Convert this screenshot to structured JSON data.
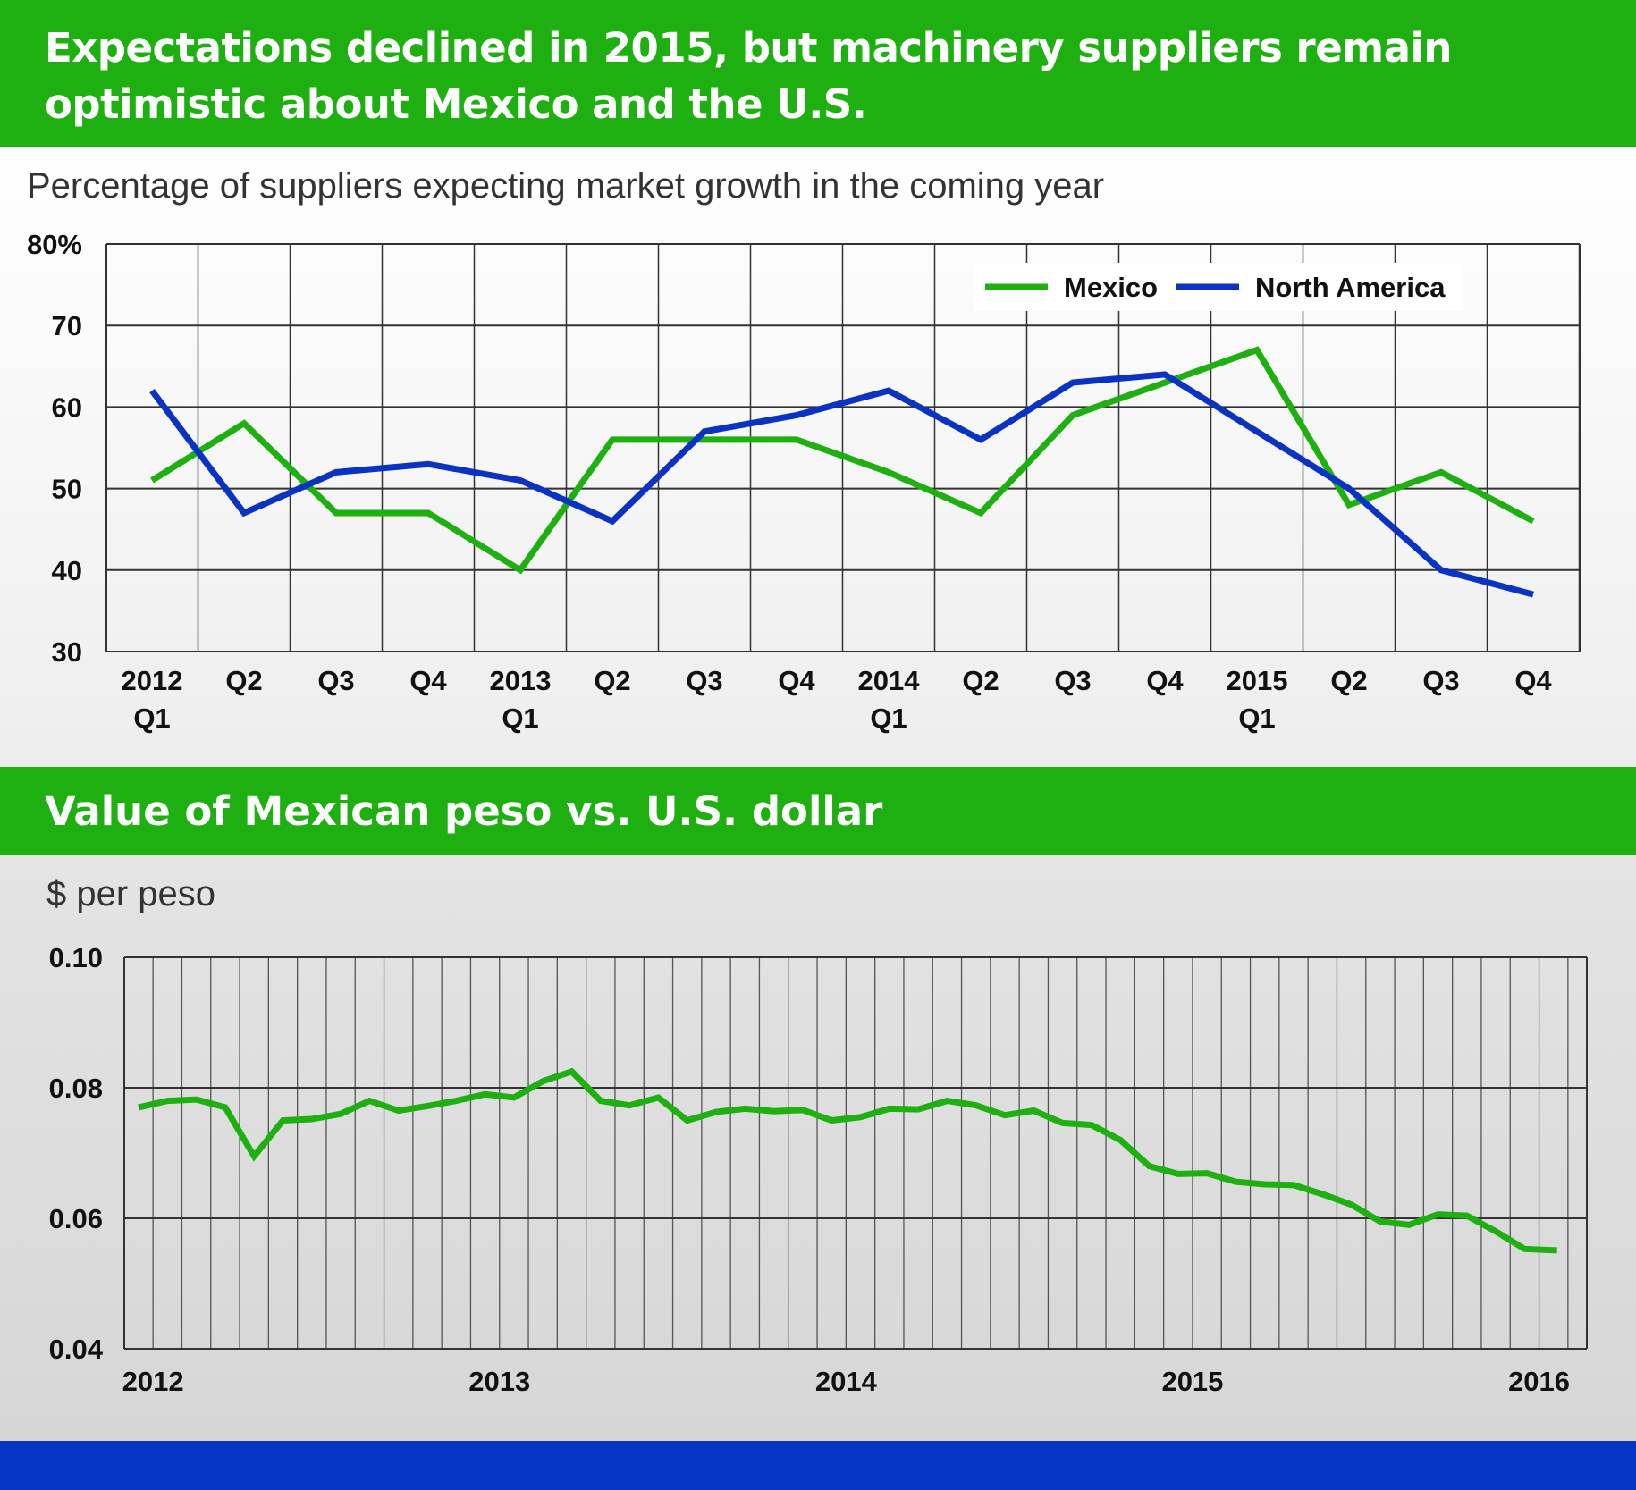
{
  "header": {
    "title": "Expectations declined in 2015, but machinery suppliers remain optimistic about Mexico and the U.S.",
    "title_line1": "Expectations declined in 2015, but machinery suppliers remain",
    "title_line2": "optimistic about Mexico and the U.S."
  },
  "section2": {
    "title": "Value of Mexican peso vs. U.S. dollar"
  },
  "colors": {
    "banner": "#1db010",
    "mexico": "#1db010",
    "north_america": "#0a33c4",
    "footer": "#0534c4"
  },
  "chart_data": [
    {
      "type": "line",
      "title": "Percentage of suppliers expecting market growth in the coming year",
      "ylim": [
        30,
        80
      ],
      "yticks": [
        "80%",
        "70",
        "60",
        "50",
        "40",
        "30"
      ],
      "grid": true,
      "legend": "top-right",
      "categories": [
        "2012 Q1",
        "Q2",
        "Q3",
        "Q4",
        "2013 Q1",
        "Q2",
        "Q3",
        "Q4",
        "2014 Q1",
        "Q2",
        "Q3",
        "Q4",
        "2015 Q1",
        "Q2",
        "Q3",
        "Q4"
      ],
      "tick_labels": [
        [
          "2012",
          "Q1"
        ],
        [
          "Q2"
        ],
        [
          "Q3"
        ],
        [
          "Q4"
        ],
        [
          "2013",
          "Q1"
        ],
        [
          "Q2"
        ],
        [
          "Q3"
        ],
        [
          "Q4"
        ],
        [
          "2014",
          "Q1"
        ],
        [
          "Q2"
        ],
        [
          "Q3"
        ],
        [
          "Q4"
        ],
        [
          "2015",
          "Q1"
        ],
        [
          "Q2"
        ],
        [
          "Q3"
        ],
        [
          "Q4"
        ]
      ],
      "series": [
        {
          "name": "Mexico",
          "color": "#1db010",
          "values": [
            51,
            58,
            47,
            47,
            40,
            56,
            56,
            56,
            52,
            47,
            59,
            63,
            67,
            48,
            52,
            46
          ]
        },
        {
          "name": "North America",
          "color": "#0a33c4",
          "values": [
            62,
            47,
            52,
            53,
            51,
            46,
            57,
            59,
            62,
            56,
            63,
            64,
            57,
            50,
            40,
            37
          ]
        }
      ]
    },
    {
      "type": "line",
      "ylabel": "$ per peso",
      "ylim": [
        0.04,
        0.1
      ],
      "yticks": [
        "0.10",
        "0.08",
        "0.06",
        "0.04"
      ],
      "grid": true,
      "x_start": "2012-01",
      "x_step": "month",
      "xticks": [
        "2012",
        "2013",
        "2014",
        "2015",
        "2016"
      ],
      "series": [
        {
          "color": "#1db010",
          "values": [
            0.077,
            0.078,
            0.0782,
            0.077,
            0.0695,
            0.075,
            0.0752,
            0.076,
            0.078,
            0.0765,
            0.0772,
            0.078,
            0.079,
            0.0785,
            0.081,
            0.0825,
            0.078,
            0.0773,
            0.0785,
            0.075,
            0.0763,
            0.0768,
            0.0764,
            0.0766,
            0.075,
            0.0755,
            0.0768,
            0.0767,
            0.078,
            0.0773,
            0.0758,
            0.0765,
            0.0746,
            0.0743,
            0.072,
            0.068,
            0.0668,
            0.0669,
            0.0656,
            0.0652,
            0.0651,
            0.0637,
            0.0621,
            0.0595,
            0.059,
            0.0606,
            0.0604,
            0.058,
            0.0553,
            0.0551
          ]
        }
      ]
    }
  ]
}
